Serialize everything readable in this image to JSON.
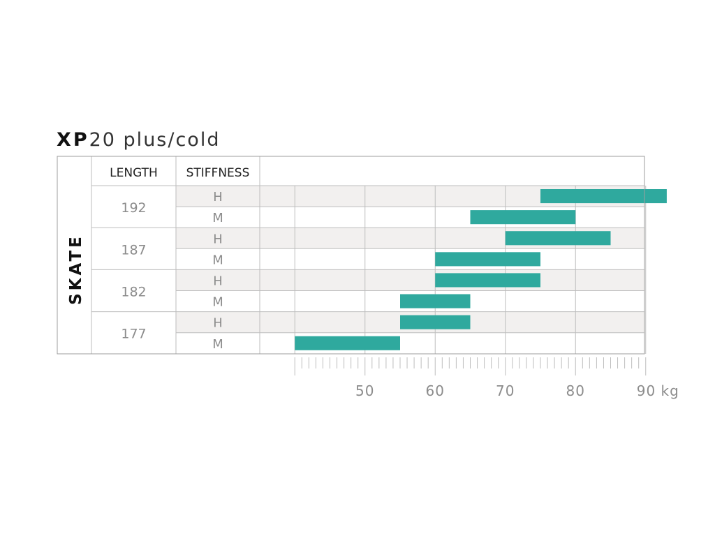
{
  "title": {
    "brand": "XP",
    "model": "20 plus/cold"
  },
  "colors": {
    "bar": "#2fa99e",
    "row_shade": "#f2f0ef",
    "grid_line": "#bdbdbd",
    "border": "#9e9e9e",
    "header_text": "#222222",
    "value_text": "#8c8c8c",
    "side_label": "#111111"
  },
  "chart_data": {
    "type": "bar",
    "orientation": "horizontal-range",
    "side_label": "SKATE",
    "headers": {
      "length": "LENGTH",
      "stiffness": "STIFFNESS"
    },
    "unit": "kg",
    "xlim": [
      35,
      90
    ],
    "gridlines": [
      40,
      50,
      60,
      70,
      80,
      90
    ],
    "ticks": [
      50,
      60,
      70,
      80,
      90
    ],
    "tick_labels": [
      "50",
      "60",
      "70",
      "80",
      "90 kg"
    ],
    "minor_tick_step": 1,
    "groups": [
      {
        "length": "192",
        "rows": [
          {
            "stiffness": "H",
            "range": [
              75,
              93
            ]
          },
          {
            "stiffness": "M",
            "range": [
              65,
              80
            ]
          }
        ]
      },
      {
        "length": "187",
        "rows": [
          {
            "stiffness": "H",
            "range": [
              70,
              85
            ]
          },
          {
            "stiffness": "M",
            "range": [
              60,
              75
            ]
          }
        ]
      },
      {
        "length": "182",
        "rows": [
          {
            "stiffness": "H",
            "range": [
              60,
              75
            ]
          },
          {
            "stiffness": "M",
            "range": [
              55,
              65
            ]
          }
        ]
      },
      {
        "length": "177",
        "rows": [
          {
            "stiffness": "H",
            "range": [
              55,
              65
            ]
          },
          {
            "stiffness": "M",
            "range": [
              40,
              55
            ]
          }
        ]
      }
    ]
  }
}
